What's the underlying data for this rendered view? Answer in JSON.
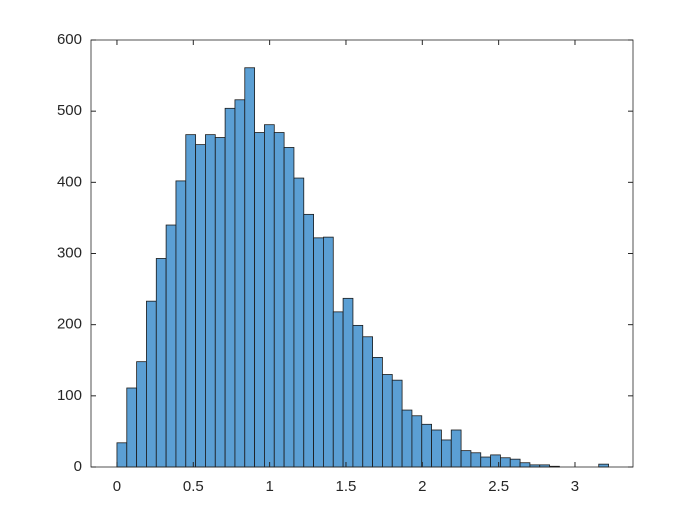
{
  "chart_data": {
    "type": "histogram",
    "bins": [
      0,
      0.0644,
      0.1288,
      0.1932,
      0.2576,
      0.322,
      0.3864,
      0.4508,
      0.5152,
      0.5796,
      0.644,
      0.7084,
      0.7728,
      0.8372,
      0.9016,
      0.966,
      1.0304,
      1.0948,
      1.1592,
      1.2236,
      1.288,
      1.3524,
      1.4168,
      1.4812,
      1.5456,
      1.61,
      1.6744,
      1.7388,
      1.8032,
      1.8676,
      1.932,
      1.9964,
      2.0608,
      2.1252,
      2.1896,
      2.254,
      2.3184,
      2.3828,
      2.4472,
      2.5116,
      2.576,
      2.6404,
      2.7048,
      2.7692,
      2.8336,
      2.898,
      2.9624,
      3.0268,
      3.0912,
      3.1556,
      3.22
    ],
    "values": [
      34,
      111,
      148,
      233,
      293,
      340,
      402,
      467,
      453,
      467,
      463,
      504,
      516,
      561,
      470,
      481,
      470,
      449,
      406,
      355,
      322,
      323,
      218,
      237,
      199,
      183,
      154,
      130,
      122,
      80,
      72,
      60,
      52,
      38,
      52,
      23,
      20,
      14,
      17,
      13,
      11,
      6,
      3,
      3,
      1,
      0,
      0,
      0,
      0,
      4
    ],
    "color": "#5b9fd4",
    "xlim": [
      -0.17,
      3.38
    ],
    "xticks": [
      0,
      0.5,
      1,
      1.5,
      2,
      2.5,
      3
    ],
    "ylim": [
      0,
      600
    ],
    "yticks": [
      0,
      100,
      200,
      300,
      400,
      500,
      600
    ],
    "grid": false
  }
}
